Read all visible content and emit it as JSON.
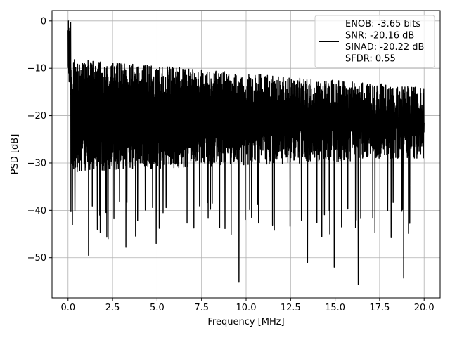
{
  "chart_data": {
    "type": "line",
    "title": "",
    "xlabel": "Frequency [MHz]",
    "ylabel": "PSD [dB]",
    "xlim": [
      -0.9,
      20.9
    ],
    "ylim": [
      -58.5,
      2.2
    ],
    "xticks": [
      0.0,
      2.5,
      5.0,
      7.5,
      10.0,
      12.5,
      15.0,
      17.5,
      20.0
    ],
    "xtick_labels": [
      "0.0",
      "2.5",
      "5.0",
      "7.5",
      "10.0",
      "12.5",
      "15.0",
      "17.5",
      "20.0"
    ],
    "yticks": [
      0,
      -10,
      -20,
      -30,
      -40,
      -50
    ],
    "ytick_labels": [
      "0",
      "−10",
      "−20",
      "−30",
      "−40",
      "−50"
    ],
    "grid": true,
    "legend": {
      "placement": "top-right",
      "lines": [
        "ENOB: -3.65 bits",
        "SNR: -20.16 dB",
        "SINAD: -20.22 dB",
        "SFDR: 0.55"
      ]
    },
    "series": [
      {
        "color": "#000000",
        "style": "dense noise spectrum",
        "x_range": [
          0.0,
          20.0
        ],
        "baseline_mean_db": -22,
        "peak_near_dc_db": 0,
        "deep_nulls": [
          {
            "x": 1.15,
            "y": -49.5
          },
          {
            "x": 2.25,
            "y": -46.0
          },
          {
            "x": 3.25,
            "y": -47.8
          },
          {
            "x": 4.95,
            "y": -47.0
          },
          {
            "x": 9.6,
            "y": -55.2
          },
          {
            "x": 13.45,
            "y": -51.0
          },
          {
            "x": 14.95,
            "y": -52.0
          },
          {
            "x": 16.3,
            "y": -55.7
          },
          {
            "x": 18.85,
            "y": -54.3
          }
        ]
      }
    ]
  }
}
